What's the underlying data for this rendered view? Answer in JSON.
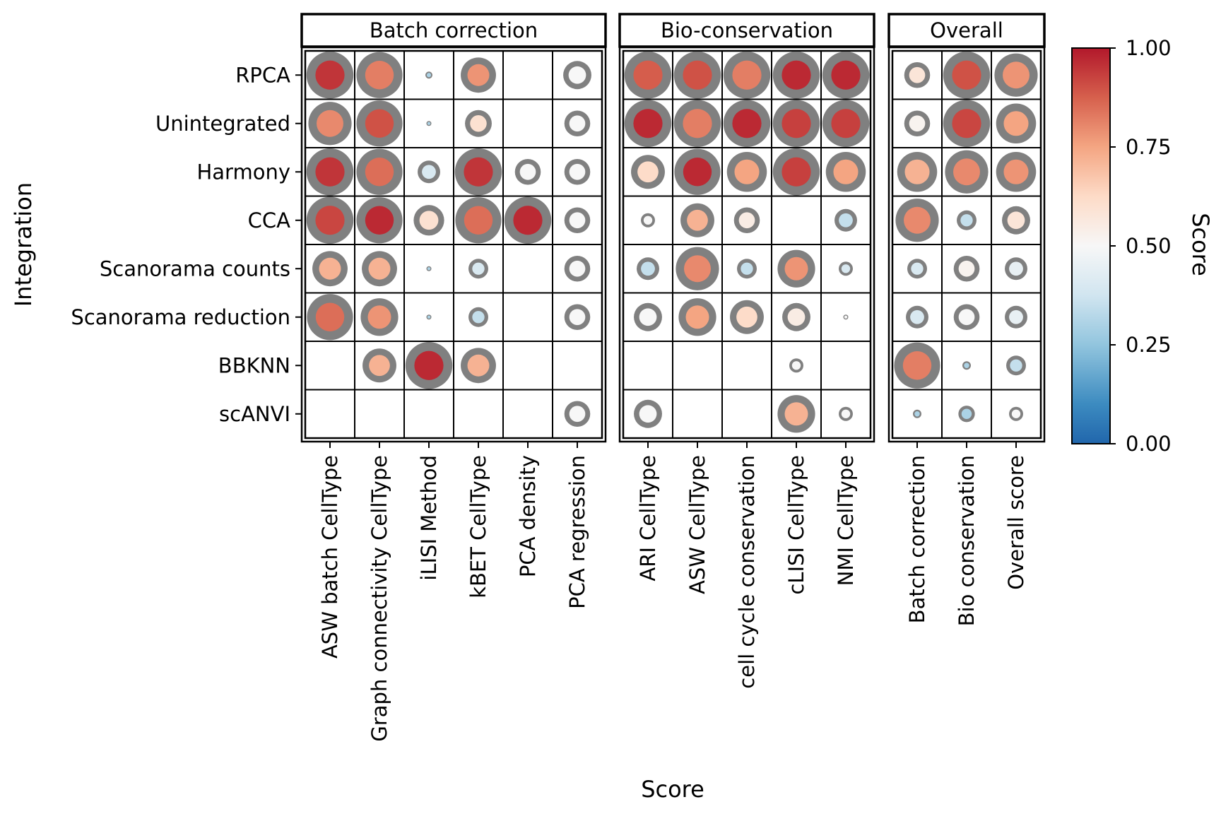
{
  "chart_data": {
    "type": "dotplot",
    "xlabel": "Score",
    "ylabel": "Integration",
    "legend_title": "Score",
    "colorbar": {
      "min": 0,
      "max": 1,
      "ticks": [
        "0.00",
        "0.25",
        "0.50",
        "0.75",
        "1.00"
      ]
    },
    "rows": [
      "RPCA",
      "Unintegrated",
      "Harmony",
      "CCA",
      "Scanorama counts",
      "Scanorama reduction",
      "BBKNN",
      "scANVI"
    ],
    "panels": [
      {
        "title": "Batch correction",
        "columns": [
          "ASW batch CellType",
          "Graph connectivity CellType",
          "iLISI Method",
          "kBET CellType",
          "PCA density",
          "PCA regression"
        ],
        "values": [
          [
            0.95,
            0.82,
            0.3,
            0.78,
            null,
            0.5
          ],
          [
            0.8,
            0.9,
            0.3,
            0.6,
            null,
            0.5
          ],
          [
            0.95,
            0.85,
            0.4,
            0.95,
            0.5,
            0.5
          ],
          [
            0.92,
            0.97,
            0.6,
            0.85,
            0.97,
            0.5
          ],
          [
            0.72,
            0.72,
            0.3,
            0.4,
            null,
            0.5
          ],
          [
            0.85,
            0.78,
            0.3,
            0.35,
            null,
            0.5
          ],
          [
            null,
            0.72,
            0.97,
            0.72,
            null,
            null
          ],
          [
            null,
            null,
            null,
            null,
            null,
            0.5
          ]
        ],
        "ranks": [
          [
            1.0,
            0.98,
            0.15,
            0.75,
            null,
            0.6
          ],
          [
            0.92,
            0.98,
            0.07,
            0.57,
            null,
            0.55
          ],
          [
            1.0,
            0.98,
            0.48,
            1.0,
            0.55,
            0.55
          ],
          [
            1.0,
            0.98,
            0.65,
            0.98,
            1.0,
            0.55
          ],
          [
            0.75,
            0.75,
            0.07,
            0.42,
            null,
            0.55
          ],
          [
            0.98,
            0.8,
            0.1,
            0.42,
            null,
            0.55
          ],
          [
            null,
            0.72,
            1.0,
            0.75,
            null,
            null
          ],
          [
            null,
            null,
            null,
            null,
            null,
            0.55
          ]
        ]
      },
      {
        "title": "Bio-conservation",
        "columns": [
          "ARI CellType",
          "ASW CellType",
          "cell cycle conservation",
          "cLISI CellType",
          "NMI CellType"
        ],
        "values": [
          [
            0.88,
            0.9,
            0.82,
            0.97,
            0.97
          ],
          [
            0.97,
            0.82,
            0.97,
            0.93,
            0.93
          ],
          [
            0.62,
            0.97,
            0.75,
            0.93,
            0.75
          ],
          [
            0.5,
            0.72,
            0.55,
            null,
            0.35
          ],
          [
            0.35,
            0.8,
            0.35,
            0.78,
            0.4
          ],
          [
            0.5,
            0.75,
            0.62,
            0.55,
            0.5
          ],
          [
            null,
            null,
            null,
            0.5,
            null
          ],
          [
            0.5,
            null,
            null,
            0.72,
            0.5
          ]
        ],
        "ranks": [
          [
            1.0,
            1.0,
            1.0,
            1.0,
            1.0
          ],
          [
            1.0,
            1.0,
            1.0,
            1.0,
            1.0
          ],
          [
            0.72,
            0.98,
            0.85,
            1.0,
            0.85
          ],
          [
            0.3,
            0.72,
            0.55,
            null,
            0.48
          ],
          [
            0.48,
            0.92,
            0.42,
            0.8,
            0.3
          ],
          [
            0.6,
            0.8,
            0.72,
            0.6,
            0.1
          ],
          [
            null,
            null,
            null,
            0.3,
            null
          ],
          [
            0.6,
            null,
            null,
            0.8,
            0.3
          ]
        ]
      },
      {
        "title": "Overall",
        "columns": [
          "Batch correction",
          "Bio conservation",
          "Overall score"
        ],
        "values": [
          [
            0.58,
            0.9,
            0.78
          ],
          [
            0.52,
            0.92,
            0.75
          ],
          [
            0.72,
            0.8,
            0.78
          ],
          [
            0.8,
            0.35,
            0.58
          ],
          [
            0.4,
            0.52,
            0.45
          ],
          [
            0.4,
            0.5,
            0.45
          ],
          [
            0.82,
            0.3,
            0.35
          ],
          [
            0.3,
            0.3,
            0.5
          ]
        ],
        "ranks": [
          [
            0.55,
            1.0,
            0.92
          ],
          [
            0.55,
            1.0,
            0.85
          ],
          [
            0.85,
            0.92,
            0.85
          ],
          [
            0.92,
            0.42,
            0.6
          ],
          [
            0.42,
            0.55,
            0.48
          ],
          [
            0.48,
            0.55,
            0.48
          ],
          [
            0.98,
            0.18,
            0.42
          ],
          [
            0.18,
            0.35,
            0.3
          ]
        ]
      }
    ]
  }
}
